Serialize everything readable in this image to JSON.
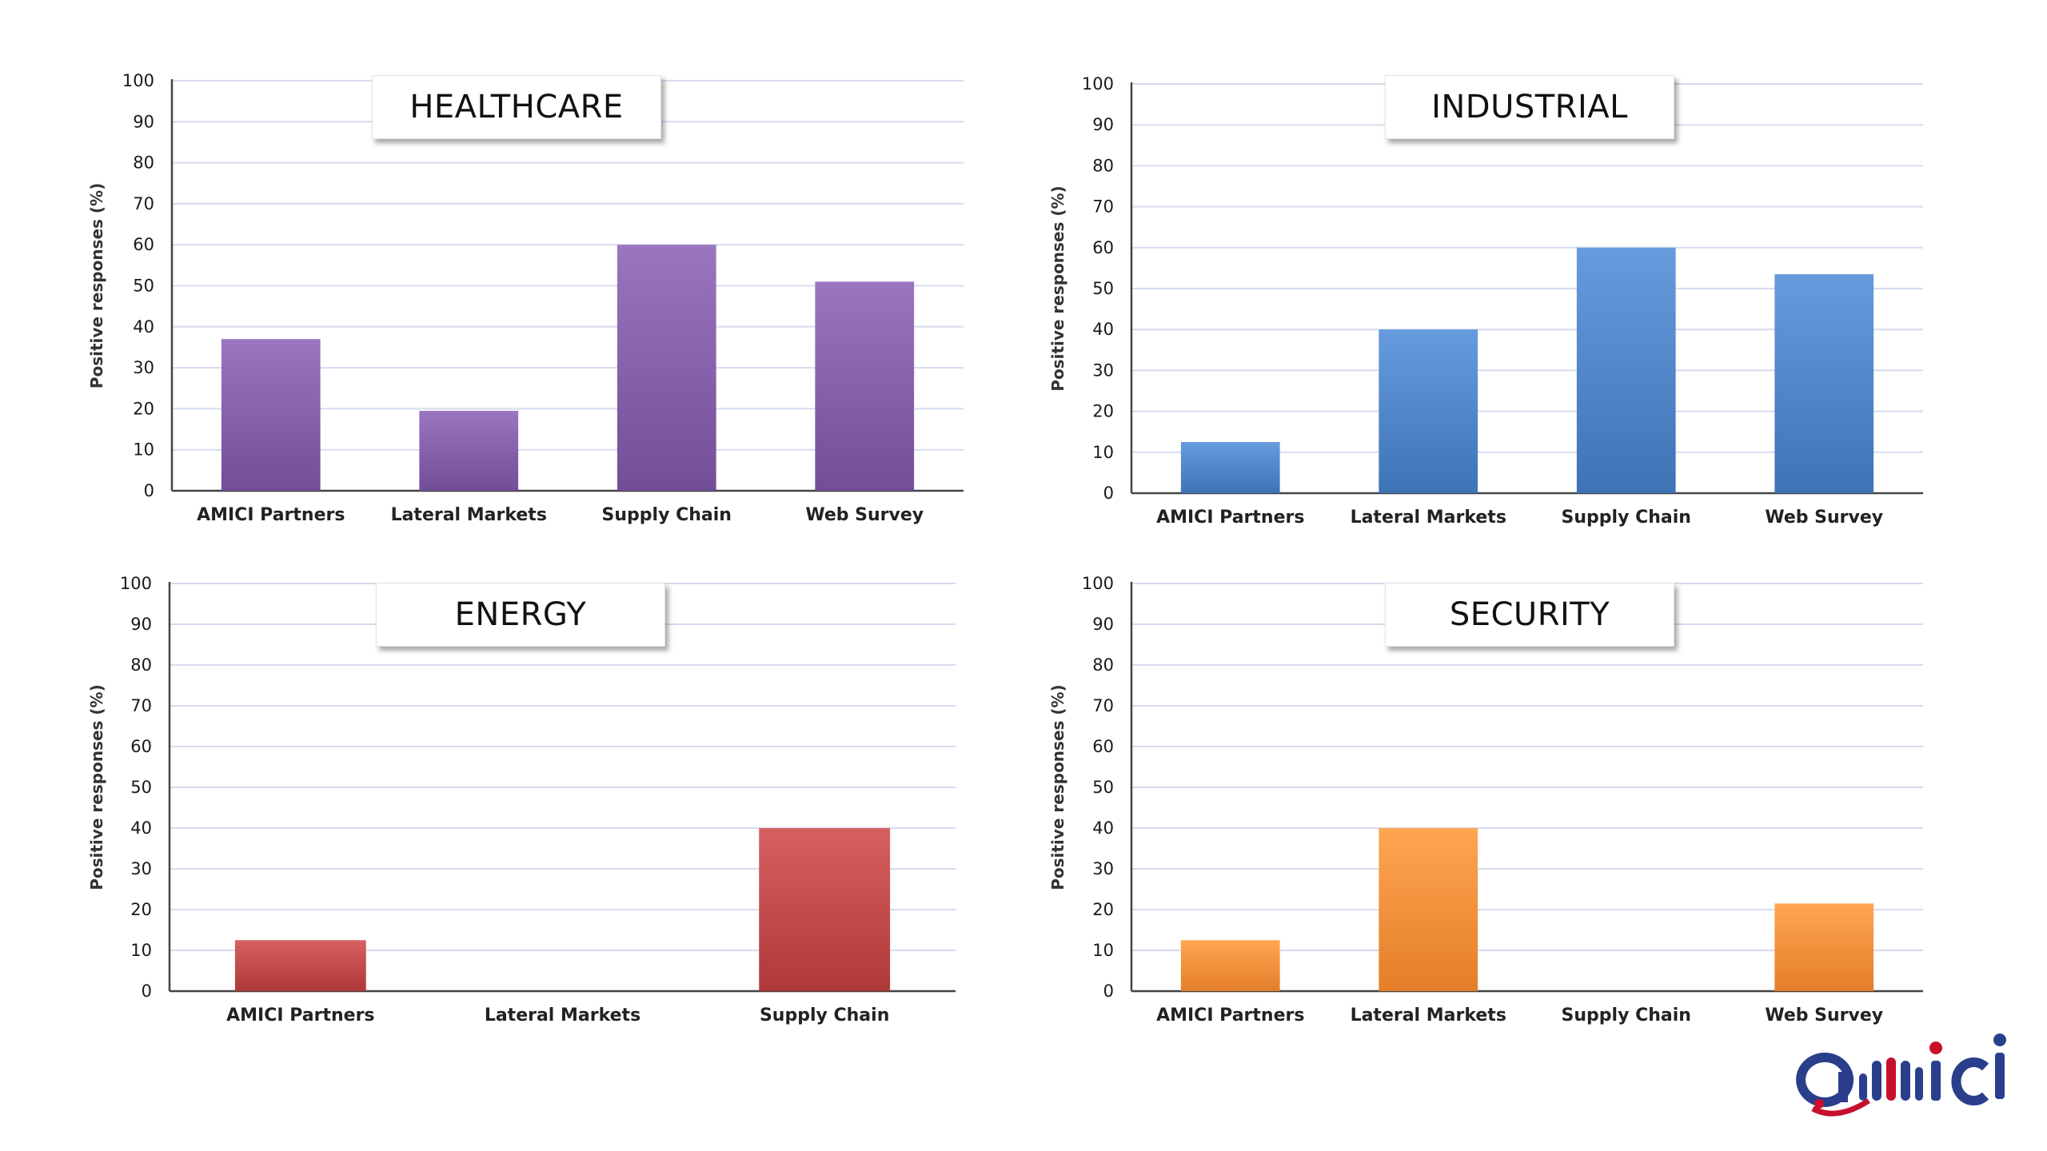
{
  "chart_data": [
    {
      "type": "bar",
      "title": "HEALTHCARE",
      "ylabel": "Positive responses (%)",
      "ylim": [
        0,
        100
      ],
      "yticks": [
        0,
        10,
        20,
        30,
        40,
        50,
        60,
        70,
        80,
        90,
        100
      ],
      "categories": [
        "AMICI Partners",
        "Lateral Markets",
        "Supply Chain",
        "Web Survey"
      ],
      "values": [
        37,
        19.5,
        60,
        51
      ],
      "color": "#7e5aa4",
      "grid": true
    },
    {
      "type": "bar",
      "title": "INDUSTRIAL",
      "ylabel": "Positive responses (%)",
      "ylim": [
        0,
        100
      ],
      "yticks": [
        0,
        10,
        20,
        30,
        40,
        50,
        60,
        70,
        80,
        90,
        100
      ],
      "categories": [
        "AMICI Partners",
        "Lateral Markets",
        "Supply Chain",
        "Web Survey"
      ],
      "values": [
        12.5,
        40,
        60,
        53.5
      ],
      "color": "#4a7fc1",
      "grid": true
    },
    {
      "type": "bar",
      "title": "ENERGY",
      "ylabel": "Positive responses (%)",
      "ylim": [
        0,
        100
      ],
      "yticks": [
        0,
        10,
        20,
        30,
        40,
        50,
        60,
        70,
        80,
        90,
        100
      ],
      "categories": [
        "AMICI Partners",
        "Lateral Markets",
        "Supply Chain"
      ],
      "values": [
        12.5,
        0,
        40
      ],
      "color": "#bb4444",
      "grid": true
    },
    {
      "type": "bar",
      "title": "SECURITY",
      "ylabel": "Positive responses (%)",
      "ylim": [
        0,
        100
      ],
      "yticks": [
        0,
        10,
        20,
        30,
        40,
        50,
        60,
        70,
        80,
        90,
        100
      ],
      "categories": [
        "AMICI Partners",
        "Lateral Markets",
        "Supply Chain",
        "Web Survey"
      ],
      "values": [
        12.5,
        40,
        0,
        21.5
      ],
      "color": "#f08a35",
      "grid": true
    }
  ],
  "logo": {
    "text": "amici",
    "colors": [
      "#2b3e8c",
      "#c8102e"
    ]
  }
}
